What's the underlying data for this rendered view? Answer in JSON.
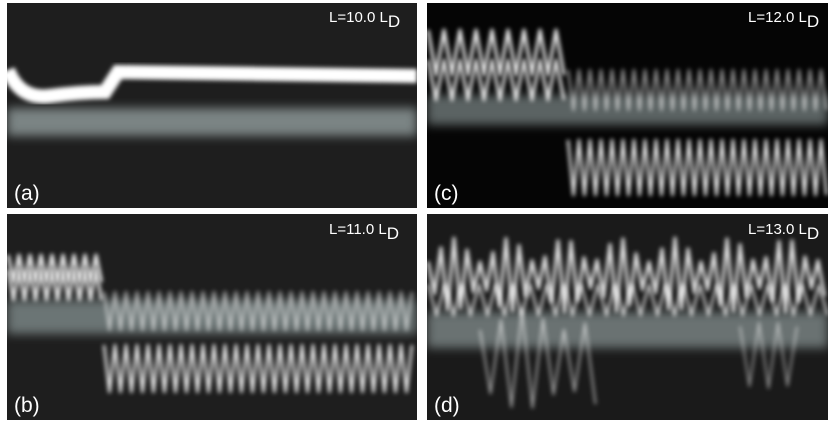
{
  "panels": [
    {
      "letter": "(a)",
      "length": "L=10.0 L",
      "subscript": "D"
    },
    {
      "letter": "(b)",
      "length": "L=11.0 L",
      "subscript": "D"
    },
    {
      "letter": "(c)",
      "length": "L=12.0 L",
      "subscript": "D"
    },
    {
      "letter": "(d)",
      "length": "L=13.0 L",
      "subscript": "D"
    }
  ]
}
